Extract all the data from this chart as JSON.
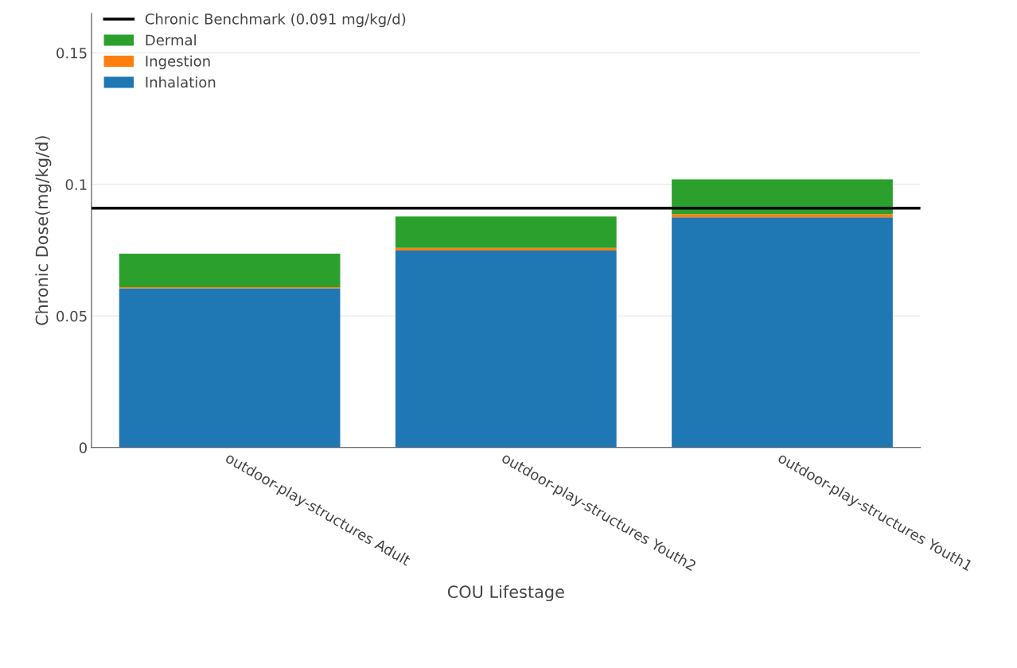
{
  "chart_data": {
    "type": "bar",
    "stacked": true,
    "xlabel": "COU Lifestage",
    "ylabel": "Chronic Dose(mg/kg/d)",
    "categories": [
      "outdoor-play-structures Adult",
      "outdoor-play-structures Youth2",
      "outdoor-play-structures Youth1"
    ],
    "series": [
      {
        "name": "Inhalation",
        "color": "#1f77b4",
        "values": [
          0.0605,
          0.0749,
          0.0875
        ]
      },
      {
        "name": "Ingestion",
        "color": "#ff7f0e",
        "values": [
          0.0005,
          0.001,
          0.0012
        ]
      },
      {
        "name": "Dermal",
        "color": "#2ca02c",
        "values": [
          0.0127,
          0.0119,
          0.0132
        ]
      }
    ],
    "ref_lines": [
      {
        "axis": "y",
        "value": 0.091,
        "label": "Chronic Benchmark (0.091 mg/kg/d)",
        "color": "#000000",
        "line_style": "solid"
      }
    ],
    "ylim": [
      0,
      0.165
    ],
    "yticks": [
      0,
      0.05,
      0.1,
      0.15
    ],
    "grid": "y",
    "legend": "top left"
  }
}
